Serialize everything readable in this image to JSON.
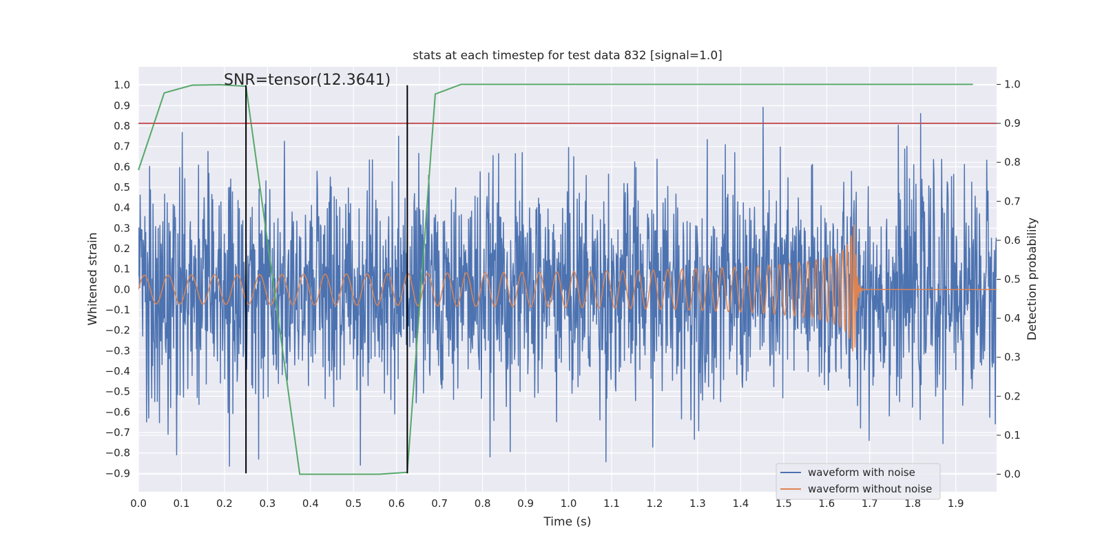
{
  "chart_data": {
    "type": "line",
    "title": "stats at each timestep for test data 832 [signal=1.0]",
    "xlabel": "Time (s)",
    "ylabel": "Whitened strain",
    "y2label": "Detection probability",
    "xlim": [
      0.0,
      1.995
    ],
    "ylim": [
      -0.99,
      1.09
    ],
    "y2lim": [
      -0.045,
      1.045
    ],
    "xticks": [
      "0.0",
      "0.1",
      "0.2",
      "0.3",
      "0.4",
      "0.5",
      "0.6",
      "0.7",
      "0.8",
      "0.9",
      "1.0",
      "1.1",
      "1.2",
      "1.3",
      "1.4",
      "1.5",
      "1.6",
      "1.7",
      "1.8",
      "1.9"
    ],
    "yticks": [
      "1.0",
      "0.9",
      "0.8",
      "0.7",
      "0.6",
      "0.5",
      "0.4",
      "0.3",
      "0.2",
      "0.1",
      "0.0",
      "−0.1",
      "−0.2",
      "−0.3",
      "−0.4",
      "−0.5",
      "−0.6",
      "−0.7",
      "−0.8",
      "−0.9"
    ],
    "y2ticks": [
      "1.0",
      "0.9",
      "0.8",
      "0.7",
      "0.6",
      "0.5",
      "0.4",
      "0.3",
      "0.2",
      "0.1",
      "0.0"
    ],
    "annotation": "SNR=tensor(12.3641)",
    "grid": true,
    "legend_position": "lower-right",
    "series": [
      {
        "name": "waveform with noise",
        "axis": "left",
        "color": "#4c72b0",
        "description": "noisy whitened strain, approx. amplitude range -0.88 to 1.0",
        "x_range": [
          0.0,
          1.995
        ],
        "approx_min": -0.88,
        "approx_max": 1.0
      },
      {
        "name": "waveform without noise",
        "axis": "left",
        "color": "#dd8452",
        "description": "chirp signal growing in amplitude and frequency, merger near t=1.665 s",
        "merger_time": 1.665,
        "start_amplitude": 0.07,
        "peak_amplitude": 0.35,
        "start_frequency_hz": 18
      },
      {
        "name": "detection probability",
        "axis": "right",
        "color": "#55a868",
        "x": [
          0.0,
          0.06,
          0.125,
          0.19,
          0.25,
          0.375,
          0.44,
          0.5,
          0.56,
          0.625,
          0.69,
          0.75,
          0.81,
          1.0,
          1.5,
          1.94
        ],
        "values": [
          0.78,
          0.978,
          0.998,
          0.999,
          0.995,
          0.0,
          0.0,
          0.0,
          0.0,
          0.005,
          0.975,
          1.0,
          1.0,
          1.0,
          1.0,
          1.0
        ]
      }
    ],
    "threshold": {
      "value": 0.9,
      "axis": "right",
      "color": "#c44e52"
    },
    "vertical_markers": [
      0.25,
      0.625
    ],
    "marker_y_range": [
      -0.9,
      1.0
    ]
  }
}
